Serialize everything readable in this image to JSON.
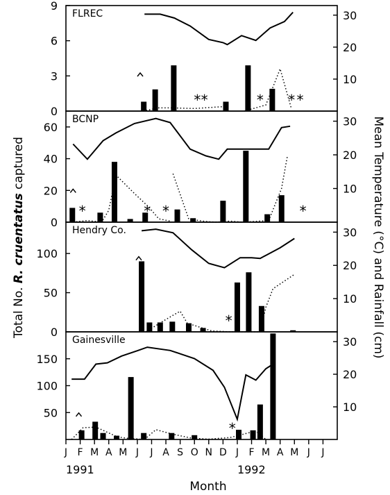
{
  "chart_data": {
    "type": "bar",
    "xlabel": "Month",
    "ylabel_left_prefix": "Total No. ",
    "ylabel_left_species": "R. cruentatus",
    "ylabel_left_suffix": " captured",
    "ylabel_right": "Mean Temperature (°C) and Rainfall (cm)",
    "months": [
      "J",
      "F",
      "M",
      "A",
      "M",
      "J",
      "J",
      "A",
      "S",
      "O",
      "N",
      "D",
      "J",
      "F",
      "M",
      "A",
      "M",
      "J",
      "J"
    ],
    "year_labels": [
      {
        "text": "1991",
        "month_index": 0
      },
      {
        "text": "1992",
        "month_index": 12
      }
    ],
    "right_axis_ticks": [
      "10",
      "20",
      "30"
    ],
    "right_axis_max": 33,
    "panels": [
      {
        "title": "FLREC",
        "ylim": [
          0,
          9
        ],
        "yticks": [
          "0",
          "3",
          "6",
          "9"
        ],
        "bars": [
          {
            "x": 5.45,
            "v": 0.8
          },
          {
            "x": 6.25,
            "v": 1.85
          },
          {
            "x": 7.55,
            "v": 3.9
          },
          {
            "x": 11.2,
            "v": 0.8
          },
          {
            "x": 12.75,
            "v": 3.9
          },
          {
            "x": 14.45,
            "v": 1.9
          }
        ],
        "temperature": [
          [
            5.5,
            30.3
          ],
          [
            6.6,
            30.3
          ],
          [
            7.6,
            29.1
          ],
          [
            8.7,
            26.6
          ],
          [
            10.0,
            22.4
          ],
          [
            11.0,
            21.4
          ],
          [
            11.3,
            20.8
          ],
          [
            12.3,
            23.6
          ],
          [
            13.3,
            22.1
          ],
          [
            14.3,
            26.0
          ],
          [
            15.3,
            28.0
          ],
          [
            15.9,
            30.9
          ]
        ],
        "rainfall_segments": [
          [
            [
              5.4,
              0.0
            ],
            [
              6.5,
              1.0
            ],
            [
              7.5,
              1.0
            ],
            [
              9.0,
              0.8
            ],
            [
              11.0,
              1.4
            ]
          ],
          [
            [
              12.5,
              0.0
            ],
            [
              14.0,
              1.9
            ],
            [
              15.0,
              13.2
            ],
            [
              15.8,
              0.6
            ]
          ]
        ],
        "carets": [
          {
            "x": 5.2,
            "rain": 11.5
          }
        ],
        "asterisks": [
          {
            "x": 9.2
          },
          {
            "x": 9.7
          },
          {
            "x": 13.6
          },
          {
            "x": 15.8
          },
          {
            "x": 16.4
          }
        ]
      },
      {
        "title": "BCNP",
        "ylim": [
          0,
          70
        ],
        "yticks": [
          "0",
          "20",
          "40",
          "60"
        ],
        "bars": [
          {
            "x": 0.45,
            "v": 9
          },
          {
            "x": 2.4,
            "v": 6
          },
          {
            "x": 3.4,
            "v": 38
          },
          {
            "x": 4.5,
            "v": 2
          },
          {
            "x": 5.55,
            "v": 6
          },
          {
            "x": 7.8,
            "v": 8
          },
          {
            "x": 8.9,
            "v": 2.5
          },
          {
            "x": 11.0,
            "v": 13.5
          },
          {
            "x": 12.6,
            "v": 45
          },
          {
            "x": 14.1,
            "v": 5
          },
          {
            "x": 15.1,
            "v": 17
          }
        ],
        "temperature": [
          [
            0.5,
            23.2
          ],
          [
            1.5,
            18.7
          ],
          [
            2.6,
            24.2
          ],
          [
            3.5,
            26.5
          ],
          [
            4.8,
            29.3
          ],
          [
            6.3,
            30.8
          ],
          [
            7.3,
            29.6
          ],
          [
            8.7,
            21.7
          ],
          [
            9.8,
            19.7
          ],
          [
            10.7,
            18.7
          ],
          [
            11.3,
            21.7
          ],
          [
            12.5,
            21.7
          ],
          [
            13.2,
            21.7
          ],
          [
            14.2,
            21.7
          ],
          [
            15.1,
            28.1
          ],
          [
            15.7,
            28.5
          ]
        ],
        "rainfall_segments": [
          [
            [
              0.5,
              0.0
            ],
            [
              1.5,
              0.5
            ],
            [
              2.5,
              0.0
            ],
            [
              3.0,
              3.5
            ],
            [
              3.5,
              14.0
            ],
            [
              4.8,
              8.5
            ],
            [
              5.8,
              4.5
            ],
            [
              6.5,
              1.0
            ],
            [
              7.3,
              0.3
            ]
          ],
          [
            [
              7.5,
              14.4
            ],
            [
              8.6,
              0.9
            ],
            [
              9.8,
              0.2
            ],
            [
              10.5,
              0.0
            ],
            [
              11.5,
              0.3
            ],
            [
              12.4,
              0.0
            ],
            [
              14.2,
              0.5
            ],
            [
              15.1,
              10.0
            ],
            [
              15.5,
              19.5
            ]
          ]
        ],
        "carets": [
          {
            "x": 0.5,
            "rain": 9.4
          }
        ],
        "asterisks": [
          {
            "x": 1.15
          },
          {
            "x": 5.7
          },
          {
            "x": 7.0
          },
          {
            "x": 16.6
          }
        ]
      },
      {
        "title": "Hendry Co.",
        "ylim": [
          0,
          140
        ],
        "yticks": [
          "0",
          "50",
          "100"
        ],
        "bars": [
          {
            "x": 5.3,
            "v": 90
          },
          {
            "x": 5.85,
            "v": 12
          },
          {
            "x": 6.6,
            "v": 12
          },
          {
            "x": 7.45,
            "v": 13
          },
          {
            "x": 8.6,
            "v": 11
          },
          {
            "x": 9.6,
            "v": 5
          },
          {
            "x": 12.0,
            "v": 63
          },
          {
            "x": 12.8,
            "v": 76
          },
          {
            "x": 13.7,
            "v": 33
          },
          {
            "x": 15.9,
            "v": 2
          }
        ],
        "temperature": [
          [
            5.3,
            30.4
          ],
          [
            6.3,
            30.9
          ],
          [
            7.5,
            29.8
          ],
          [
            8.8,
            24.7
          ],
          [
            10.0,
            20.6
          ],
          [
            11.1,
            19.3
          ],
          [
            12.2,
            22.3
          ],
          [
            13.0,
            22.3
          ],
          [
            13.6,
            22.1
          ],
          [
            15.0,
            25.3
          ],
          [
            16.0,
            28.1
          ]
        ],
        "rainfall_segments": [
          [
            [
              5.6,
              0.0
            ],
            [
              6.6,
              2.7
            ],
            [
              7.5,
              5.0
            ],
            [
              8.0,
              6.2
            ],
            [
              8.5,
              2.6
            ],
            [
              10.2,
              0.3
            ],
            [
              11.5,
              0.0
            ],
            [
              12.4,
              0.0
            ],
            [
              13.6,
              0.0
            ],
            [
              14.0,
              7.4
            ],
            [
              14.5,
              13.0
            ],
            [
              16.0,
              17.3
            ]
          ]
        ],
        "carets": [
          {
            "x": 5.1,
            "rain": 22.2
          }
        ],
        "asterisks": [
          {
            "x": 11.4
          }
        ]
      },
      {
        "title": "Gainesville",
        "ylim": [
          0,
          200
        ],
        "yticks": [
          "50",
          "100",
          "150"
        ],
        "bars": [
          {
            "x": 1.1,
            "v": 17
          },
          {
            "x": 2.05,
            "v": 33
          },
          {
            "x": 2.6,
            "v": 12
          },
          {
            "x": 3.55,
            "v": 7
          },
          {
            "x": 4.55,
            "v": 116
          },
          {
            "x": 5.45,
            "v": 12
          },
          {
            "x": 7.4,
            "v": 12
          },
          {
            "x": 9.0,
            "v": 8
          },
          {
            "x": 12.1,
            "v": 18
          },
          {
            "x": 13.1,
            "v": 17
          },
          {
            "x": 13.6,
            "v": 65
          },
          {
            "x": 14.5,
            "v": 197
          }
        ],
        "temperature": [
          [
            0.4,
            18.5
          ],
          [
            1.3,
            18.5
          ],
          [
            2.1,
            23.1
          ],
          [
            2.9,
            23.5
          ],
          [
            3.9,
            25.6
          ],
          [
            5.0,
            27.2
          ],
          [
            5.7,
            28.3
          ],
          [
            7.3,
            27.3
          ],
          [
            9.0,
            24.8
          ],
          [
            10.3,
            21.2
          ],
          [
            11.1,
            16.0
          ],
          [
            12.0,
            6.2
          ],
          [
            12.6,
            19.8
          ],
          [
            13.3,
            18.2
          ],
          [
            14.0,
            21.7
          ],
          [
            14.4,
            22.8
          ]
        ],
        "rainfall_segments": [
          [
            [
              0.4,
              0.0
            ],
            [
              1.2,
              3.6
            ],
            [
              2.1,
              3.8
            ],
            [
              3.6,
              0.8
            ],
            [
              4.2,
              0.4
            ],
            [
              5.5,
              0.0
            ]
          ],
          [
            [
              5.5,
              0.0
            ],
            [
              6.3,
              3.0
            ],
            [
              7.5,
              1.6
            ],
            [
              8.8,
              0.4
            ],
            [
              10.0,
              0.1
            ],
            [
              11.5,
              0.6
            ],
            [
              12.5,
              1.7
            ],
            [
              13.3,
              2.6
            ],
            [
              14.0,
              0.0
            ]
          ]
        ],
        "carets": [
          {
            "x": 0.9,
            "rain": 7.7
          }
        ],
        "asterisks": [
          {
            "x": 11.65
          }
        ]
      }
    ]
  }
}
